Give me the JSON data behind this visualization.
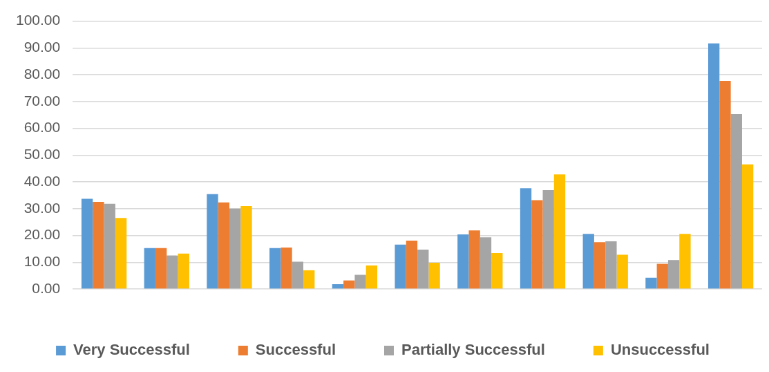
{
  "chart_data": {
    "type": "bar",
    "categories": [
      null,
      null,
      null,
      null,
      null,
      null,
      null,
      null,
      null,
      null,
      null
    ],
    "series": [
      {
        "name": "Very Successful",
        "color": "#5b9bd5",
        "values": [
          33.7,
          15.3,
          35.4,
          15.3,
          1.8,
          16.6,
          20.4,
          37.6,
          20.6,
          4.2,
          91.7
        ]
      },
      {
        "name": "Successful",
        "color": "#ed7d31",
        "values": [
          32.5,
          15.3,
          32.3,
          15.5,
          3.2,
          18.1,
          21.9,
          33.2,
          17.5,
          9.4,
          77.7
        ]
      },
      {
        "name": "Partially Successful",
        "color": "#a5a5a5",
        "values": [
          31.8,
          12.5,
          30.0,
          10.2,
          5.3,
          14.7,
          19.3,
          36.9,
          17.8,
          10.8,
          65.3
        ]
      },
      {
        "name": "Unsuccessful",
        "color": "#ffc000",
        "values": [
          26.5,
          13.2,
          31.0,
          7.0,
          8.8,
          9.8,
          13.4,
          42.8,
          12.8,
          20.6,
          46.5
        ]
      }
    ],
    "ylim": [
      0,
      100
    ],
    "yticks": [
      {
        "value": 0,
        "label": "0.00"
      },
      {
        "value": 10,
        "label": "10.00"
      },
      {
        "value": 20,
        "label": "20.00"
      },
      {
        "value": 30,
        "label": "30.00"
      },
      {
        "value": 40,
        "label": "40.00"
      },
      {
        "value": 50,
        "label": "50.00"
      },
      {
        "value": 60,
        "label": "60.00"
      },
      {
        "value": 70,
        "label": "70.00"
      },
      {
        "value": 80,
        "label": "80.00"
      },
      {
        "value": 90,
        "label": "90.00"
      },
      {
        "value": 100,
        "label": "100.00"
      }
    ],
    "grid": "y",
    "legend": "bottom"
  }
}
